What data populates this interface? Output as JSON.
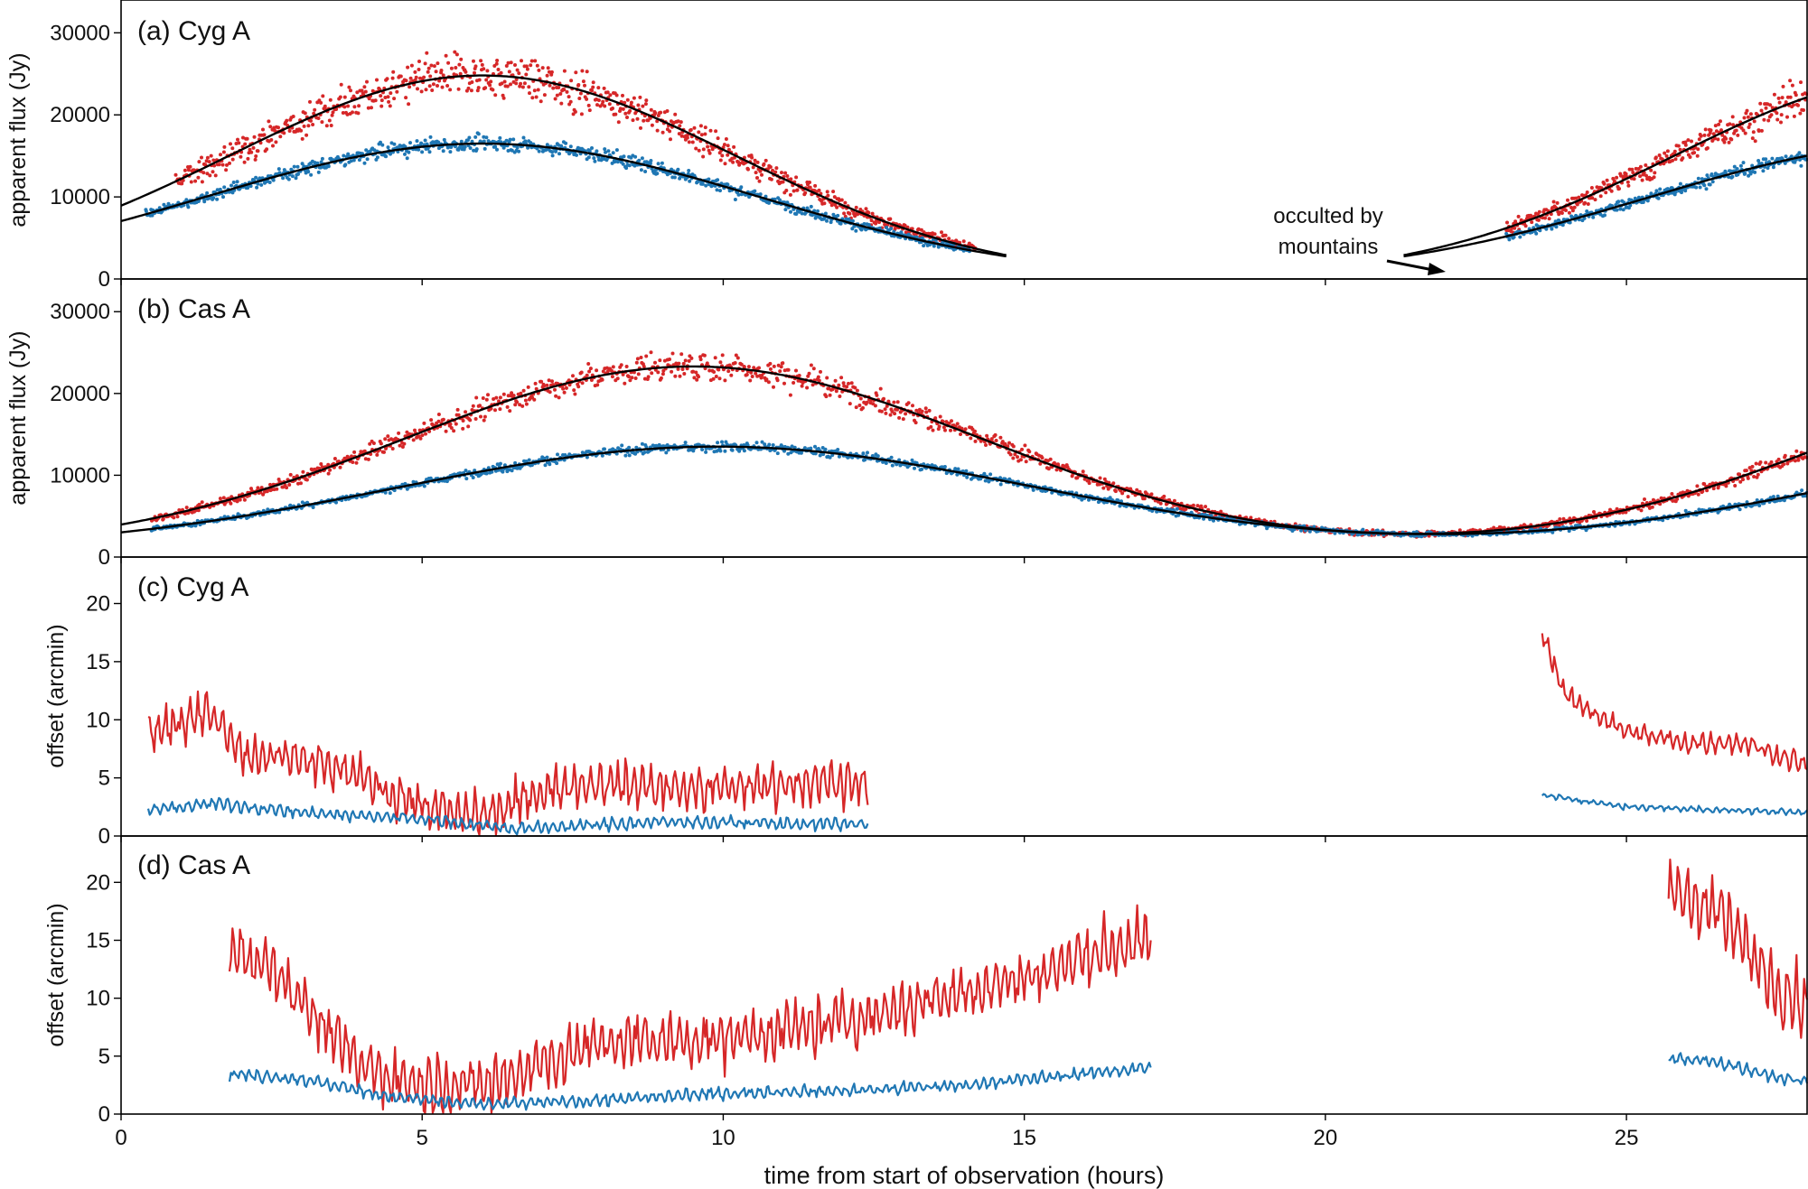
{
  "colors": {
    "red": "#d62728",
    "blue": "#1f77b4",
    "model": "#000000"
  },
  "x_axis": {
    "label": "time from start of observation (hours)",
    "range": [
      0,
      28
    ],
    "ticks": [
      0,
      5,
      10,
      15,
      20,
      25
    ],
    "tick_labels": [
      "0",
      "5",
      "10",
      "15",
      "20",
      "25"
    ]
  },
  "annotation": {
    "line1": "occulted by",
    "line2": "mountains",
    "points_to_hour": 22.1
  },
  "chart_data": [
    {
      "id": "a",
      "type": "scatter",
      "title": "(a) Cyg A",
      "ylabel": "apparent flux (Jy)",
      "ylim": [
        0,
        34000
      ],
      "yticks": [
        0,
        10000,
        20000,
        30000
      ],
      "ytick_labels": [
        "0",
        "10000",
        "20000",
        "30000"
      ],
      "series": [
        {
          "name": "red",
          "color": "#d62728",
          "segments": [
            [
              0.9,
              14.2
            ],
            [
              23.0,
              28.0
            ]
          ],
          "model_peak": 24800,
          "model_peak_time": 6.0,
          "model_width": 4.2,
          "scatter_fraction": 0.1
        },
        {
          "name": "blue",
          "color": "#1f77b4",
          "segments": [
            [
              0.4,
              14.1
            ],
            [
              23.0,
              28.0
            ]
          ],
          "model_peak": 16500,
          "model_peak_time": 6.0,
          "model_width": 4.6,
          "scatter_fraction": 0.05
        }
      ],
      "model_lines": [
        {
          "peak": 24800,
          "center": 6.0,
          "width": 4.2,
          "range": [
            0,
            14.7
          ]
        },
        {
          "peak": 16500,
          "center": 6.0,
          "width": 4.6,
          "range": [
            0,
            14.7
          ]
        },
        {
          "peak": 24800,
          "center": 30.0,
          "width": 4.2,
          "range": [
            21.3,
            28.0
          ]
        },
        {
          "peak": 16500,
          "center": 30.0,
          "width": 4.6,
          "range": [
            21.3,
            28.0
          ]
        }
      ]
    },
    {
      "id": "b",
      "type": "scatter",
      "title": "(b) Cas A",
      "ylabel": "apparent flux (Jy)",
      "ylim": [
        0,
        34000
      ],
      "yticks": [
        0,
        10000,
        20000,
        30000
      ],
      "ytick_labels": [
        "0",
        "10000",
        "20000",
        "30000"
      ],
      "series": [
        {
          "name": "red",
          "color": "#d62728",
          "segments": [
            [
              0.5,
              28.0
            ]
          ],
          "base": 800,
          "amplitude": 22500,
          "center": 9.5,
          "width": 4.8,
          "scatter_fraction": 0.07
        },
        {
          "name": "blue",
          "color": "#1f77b4",
          "segments": [
            [
              0.5,
              28.0
            ]
          ],
          "base": 800,
          "amplitude": 12700,
          "center": 9.9,
          "width": 5.3,
          "scatter_fraction": 0.04
        }
      ]
    },
    {
      "id": "c",
      "type": "line",
      "title": "(c) Cyg A",
      "ylabel": "offset (arcmin)",
      "ylim": [
        0,
        24
      ],
      "yticks": [
        0,
        5,
        10,
        15,
        20
      ],
      "ytick_labels": [
        "0",
        "5",
        "10",
        "15",
        "20"
      ],
      "series": [
        {
          "name": "red",
          "color": "#d62728",
          "segments": [
            {
              "range": [
                0.45,
                12.4
              ],
              "anchors": [
                [
                  0.45,
                  8.5
                ],
                [
                  1.0,
                  10
                ],
                [
                  1.4,
                  11
                ],
                [
                  2.0,
                  7
                ],
                [
                  3.0,
                  6.5
                ],
                [
                  4.0,
                  5
                ],
                [
                  5.0,
                  2.5
                ],
                [
                  6.0,
                  1.5
                ],
                [
                  7.0,
                  4
                ],
                [
                  8.0,
                  4.5
                ],
                [
                  9.5,
                  4
                ],
                [
                  11.0,
                  4.5
                ],
                [
                  12.4,
                  4.5
                ]
              ],
              "noise_amp": 2.2
            },
            {
              "range": [
                23.6,
                28.0
              ],
              "anchors": [
                [
                  23.6,
                  17.5
                ],
                [
                  24.0,
                  12
                ],
                [
                  25.0,
                  9
                ],
                [
                  26.0,
                  8
                ],
                [
                  27.0,
                  8
                ],
                [
                  28.0,
                  6
                ]
              ],
              "noise_amp": 1.0
            }
          ]
        },
        {
          "name": "blue",
          "color": "#1f77b4",
          "segments": [
            {
              "range": [
                0.45,
                12.4
              ],
              "anchors": [
                [
                  0.45,
                  2.2
                ],
                [
                  1.5,
                  2.8
                ],
                [
                  3.0,
                  2.0
                ],
                [
                  5.0,
                  1.5
                ],
                [
                  6.5,
                  0.6
                ],
                [
                  9.0,
                  1.2
                ],
                [
                  12.4,
                  1.0
                ]
              ],
              "noise_amp": 0.6
            },
            {
              "range": [
                23.6,
                28.0
              ],
              "anchors": [
                [
                  23.6,
                  3.5
                ],
                [
                  25.0,
                  2.5
                ],
                [
                  28.0,
                  2.0
                ]
              ],
              "noise_amp": 0.3
            }
          ]
        }
      ]
    },
    {
      "id": "d",
      "type": "line",
      "title": "(d) Cas A",
      "ylabel": "offset (arcmin)",
      "ylim": [
        0,
        24
      ],
      "yticks": [
        0,
        5,
        10,
        15,
        20
      ],
      "ytick_labels": [
        "0",
        "5",
        "10",
        "15",
        "20"
      ],
      "series": [
        {
          "name": "red",
          "color": "#d62728",
          "segments": [
            {
              "range": [
                1.8,
                17.1
              ],
              "anchors": [
                [
                  1.8,
                  14.5
                ],
                [
                  2.6,
                  12.5
                ],
                [
                  3.2,
                  8.5
                ],
                [
                  4.0,
                  4.0
                ],
                [
                  5.0,
                  2.5
                ],
                [
                  6.0,
                  2.5
                ],
                [
                  7.0,
                  4.5
                ],
                [
                  8.0,
                  6.0
                ],
                [
                  10.0,
                  6.5
                ],
                [
                  12.0,
                  8.0
                ],
                [
                  14.0,
                  10.5
                ],
                [
                  15.5,
                  12.5
                ],
                [
                  16.2,
                  14.0
                ],
                [
                  17.1,
                  15.0
                ]
              ],
              "noise_amp": 2.8
            },
            {
              "range": [
                25.7,
                28.0
              ],
              "anchors": [
                [
                  25.7,
                  19.5
                ],
                [
                  26.5,
                  17.5
                ],
                [
                  27.5,
                  11.0
                ],
                [
                  28.0,
                  9.5
                ]
              ],
              "noise_amp": 3.2
            }
          ]
        },
        {
          "name": "blue",
          "color": "#1f77b4",
          "segments": [
            {
              "range": [
                1.8,
                17.1
              ],
              "anchors": [
                [
                  1.8,
                  3.5
                ],
                [
                  3.0,
                  3.0
                ],
                [
                  4.5,
                  1.5
                ],
                [
                  6.0,
                  0.8
                ],
                [
                  8.0,
                  1.2
                ],
                [
                  10.0,
                  1.8
                ],
                [
                  12.0,
                  2.0
                ],
                [
                  14.0,
                  2.5
                ],
                [
                  16.0,
                  3.5
                ],
                [
                  17.1,
                  4.0
                ]
              ],
              "noise_amp": 0.6
            },
            {
              "range": [
                25.7,
                28.0
              ],
              "anchors": [
                [
                  25.7,
                  4.8
                ],
                [
                  26.5,
                  4.5
                ],
                [
                  27.5,
                  3.2
                ],
                [
                  28.0,
                  2.8
                ]
              ],
              "noise_amp": 0.6
            }
          ]
        }
      ]
    }
  ]
}
